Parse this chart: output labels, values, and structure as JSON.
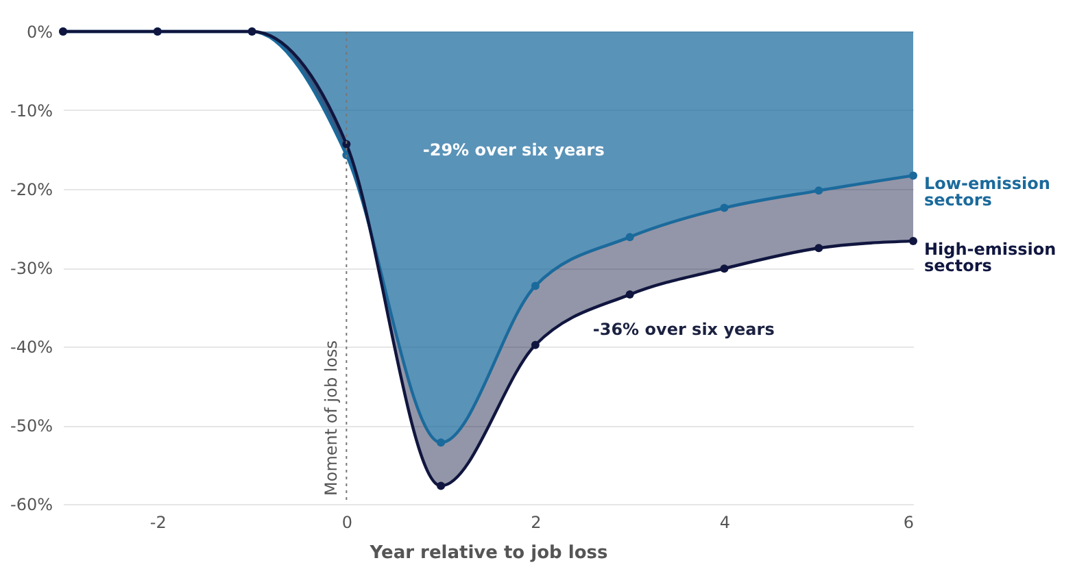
{
  "chart_data": {
    "type": "area",
    "x": [
      -3,
      -2,
      -1,
      0,
      1,
      2,
      3,
      4,
      5,
      6
    ],
    "series": [
      {
        "name": "Low-emission sectors",
        "color": "#1b6a9c",
        "values": [
          0,
          0,
          0,
          -15.7,
          -52.2,
          -32.3,
          -26.1,
          -22.4,
          -20.2,
          -18.3
        ]
      },
      {
        "name": "High-emission sectors",
        "color": "#10163f",
        "values": [
          0,
          0,
          0,
          -14.3,
          -57.7,
          -39.8,
          -33.4,
          -30.1,
          -27.5,
          -26.6
        ]
      }
    ],
    "xlabel": "Year relative to job loss",
    "xlim": [
      -3,
      6
    ],
    "xticks": [
      -2,
      0,
      2,
      4,
      6
    ],
    "ylim": [
      -60,
      0
    ],
    "yticks": [
      {
        "value": -60,
        "label": "-60%"
      },
      {
        "value": -50,
        "label": "-50%"
      },
      {
        "value": -40,
        "label": "-40%"
      },
      {
        "value": -30,
        "label": "-30%"
      },
      {
        "value": -20,
        "label": "-20%"
      },
      {
        "value": -10,
        "label": "-10%"
      },
      {
        "value": 0,
        "label": "0%"
      }
    ],
    "grid": "y",
    "marker": "circle",
    "ref_lines": [
      {
        "axis": "x",
        "value": 0,
        "label": "Moment of job loss",
        "line_style": "dotted"
      }
    ],
    "annotations": [
      "-29% over six years",
      "-36% over six years"
    ]
  }
}
